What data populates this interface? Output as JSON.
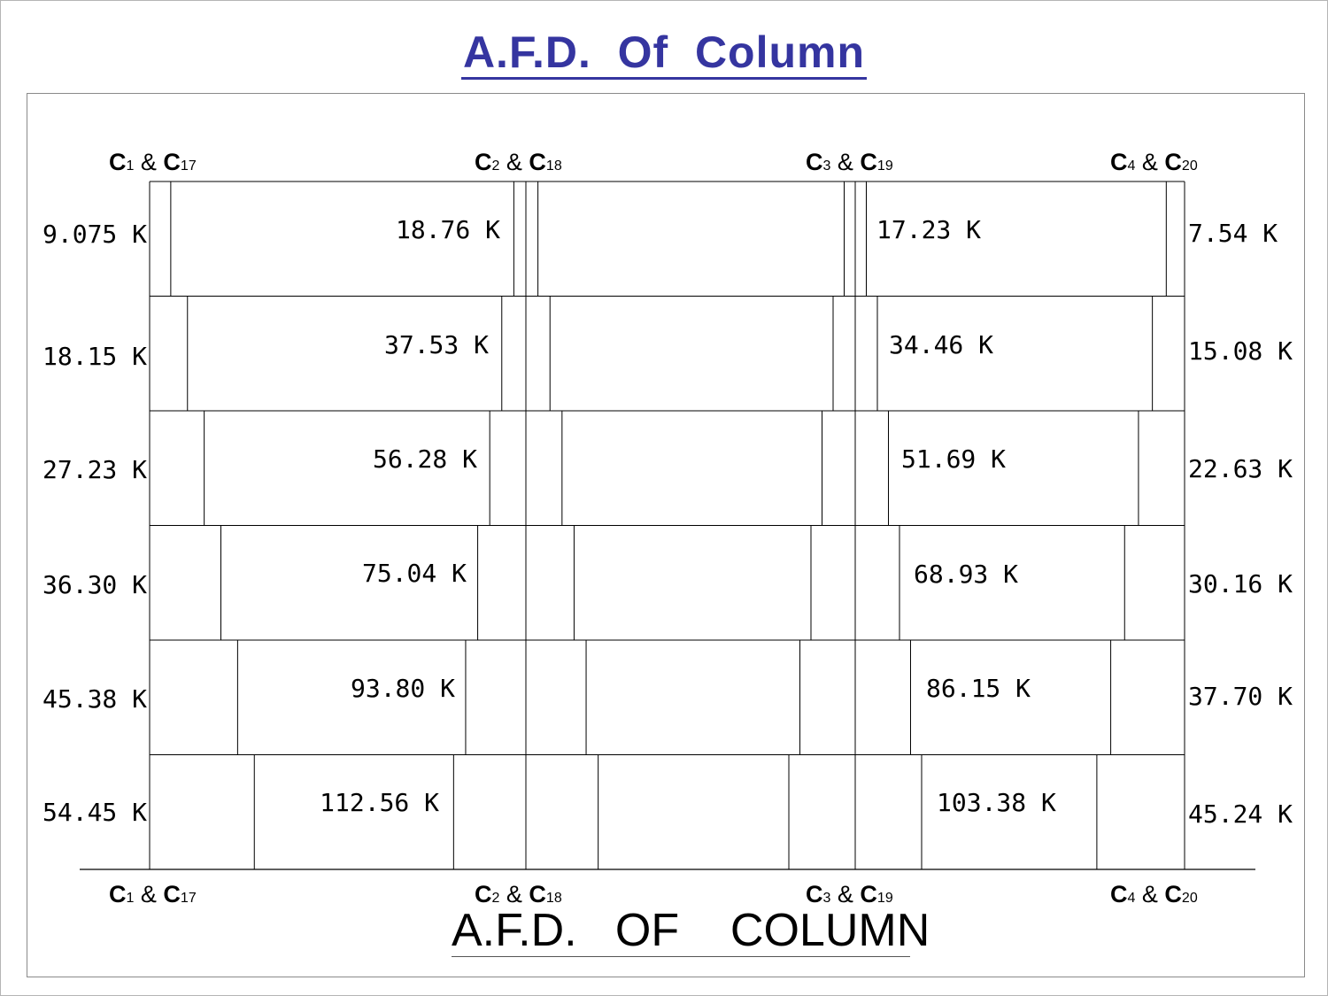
{
  "title": "A.F.D.  Of  Column",
  "caption": "A.F.D.   OF    COLUMN",
  "columns": [
    {
      "name": "C1 & C17",
      "main": "C",
      "num": "1",
      "amp": "&",
      "main2": "C",
      "num2": "17"
    },
    {
      "name": "C2 & C18",
      "main": "C",
      "num": "2",
      "amp": "&",
      "main2": "C",
      "num2": "18"
    },
    {
      "name": "C3 & C19",
      "main": "C",
      "num": "3",
      "amp": "&",
      "main2": "C",
      "num2": "19"
    },
    {
      "name": "C4 & C20",
      "main": "C",
      "num": "4",
      "amp": "&",
      "main2": "C",
      "num2": "20"
    }
  ],
  "chart_data": {
    "type": "axial force diagram",
    "unit": "K",
    "stories": 6,
    "series": [
      {
        "name": "C1 & C17",
        "labels": [
          "9.075 K",
          "18.15 K",
          "27.23 K",
          "36.30 K",
          "45.38 K",
          "54.45 K"
        ],
        "values": [
          9.075,
          18.15,
          27.23,
          36.3,
          45.38,
          54.45
        ]
      },
      {
        "name": "C2 & C18",
        "labels": [
          "18.76 K",
          "37.53 K",
          "56.28 K",
          "75.04 K",
          "93.80 K",
          "112.56 K"
        ],
        "values": [
          18.76,
          37.53,
          56.28,
          75.04,
          93.8,
          112.56
        ]
      },
      {
        "name": "C3 & C19",
        "labels": [
          "17.23 K",
          "34.46 K",
          "51.69 K",
          "68.93 K",
          "86.15 K",
          "103.38 K"
        ],
        "values": [
          17.23,
          34.46,
          51.69,
          68.93,
          86.15,
          103.38
        ]
      },
      {
        "name": "C4 & C20",
        "labels": [
          "7.54 K",
          "15.08 K",
          "22.63 K",
          "30.16 K",
          "37.70 K",
          "45.24 K"
        ],
        "values": [
          7.54,
          15.08,
          22.63,
          30.16,
          37.7,
          45.24
        ]
      }
    ]
  }
}
